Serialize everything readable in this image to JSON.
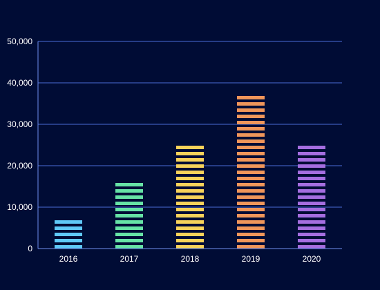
{
  "chart_data": {
    "type": "bar",
    "title": "",
    "xlabel": "",
    "ylabel": "",
    "categories": [
      "2016",
      "2017",
      "2018",
      "2019",
      "2020"
    ],
    "values": [
      7000,
      16000,
      26000,
      37000,
      25000
    ],
    "ylim": [
      0,
      50000
    ],
    "yticks": [
      0,
      10000,
      20000,
      30000,
      40000,
      50000
    ],
    "ytick_labels": [
      "0",
      "10,000",
      "20,000",
      "30,000",
      "40,000",
      "50,000"
    ],
    "grid": true,
    "legend": "none",
    "bar_pattern": "horizontal-stripes",
    "colors": {
      "background": "#000c35",
      "grid": "#4a6bd6",
      "axis": "#6f8ff0",
      "text": "#ffffff",
      "bars": [
        "#5fc9f8",
        "#66e3a6",
        "#f7d35a",
        "#f0965a",
        "#a56ee0"
      ]
    }
  }
}
